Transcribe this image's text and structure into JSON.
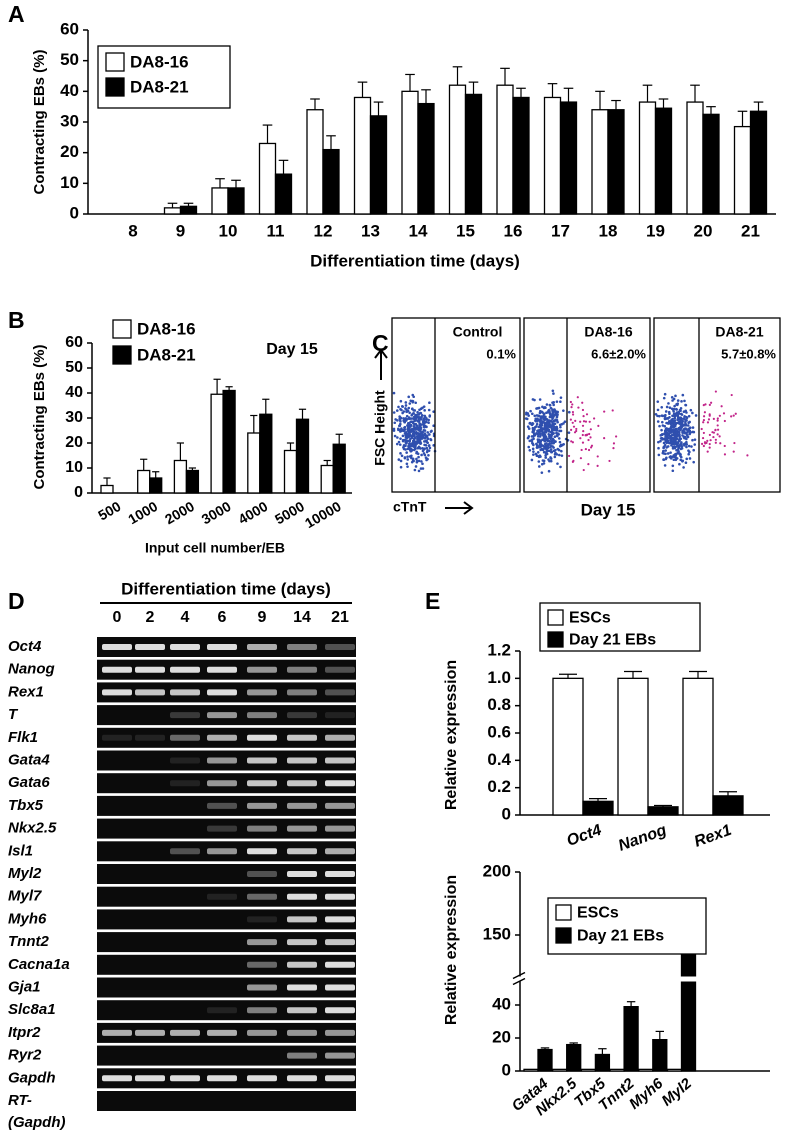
{
  "panel_labels": [
    "A",
    "B",
    "C",
    "D",
    "E"
  ],
  "chart_data": [
    {
      "type": "bar",
      "x_label": "Differentiation time (days)",
      "y_label": "Contracting EBs (%)",
      "categories": [
        "8",
        "9",
        "10",
        "11",
        "12",
        "13",
        "14",
        "15",
        "16",
        "17",
        "18",
        "19",
        "20",
        "21"
      ],
      "series": [
        {
          "name": "DA8-16",
          "color": "#ffffff",
          "values": [
            null,
            2,
            8.5,
            23,
            34,
            38,
            40,
            42,
            42,
            38,
            34,
            36.5,
            36.5,
            28.5
          ],
          "errors": [
            null,
            1.5,
            3,
            6,
            3.5,
            5,
            5.5,
            6,
            5.5,
            4.5,
            6,
            5.5,
            5.5,
            5
          ]
        },
        {
          "name": "DA8-21",
          "color": "#000000",
          "values": [
            null,
            2.5,
            8.5,
            13,
            21,
            32,
            36,
            39,
            38,
            36.5,
            34,
            34.5,
            32.5,
            33.5
          ],
          "errors": [
            null,
            1,
            2.5,
            4.5,
            4.5,
            4.5,
            4.5,
            4,
            3,
            4.5,
            3,
            3,
            2.5,
            3
          ]
        }
      ],
      "ylim": [
        0,
        60
      ],
      "yticks": [
        0,
        10,
        20,
        30,
        40,
        50,
        60
      ]
    },
    {
      "type": "bar",
      "annotation": "Day 15",
      "x_label": "Input cell number/EB",
      "y_label": "Contracting EBs (%)",
      "categories": [
        "500",
        "1000",
        "2000",
        "3000",
        "4000",
        "5000",
        "10000"
      ],
      "series": [
        {
          "name": "DA8-16",
          "color": "#ffffff",
          "values": [
            3,
            9,
            13,
            39.5,
            24,
            17,
            11
          ],
          "errors": [
            3,
            4.5,
            7,
            6,
            7,
            3,
            2
          ]
        },
        {
          "name": "DA8-21",
          "color": "#000000",
          "values": [
            null,
            6,
            9,
            41,
            31.5,
            29.5,
            19.5
          ],
          "errors": [
            null,
            2.5,
            1,
            1.5,
            6,
            4,
            4
          ]
        }
      ],
      "ylim": [
        0,
        60
      ],
      "yticks": [
        0,
        10,
        20,
        30,
        40,
        50,
        60
      ]
    },
    {
      "type": "bar",
      "y_label": "Relative expression",
      "categories": [
        "Oct4",
        "Nanog",
        "Rex1"
      ],
      "series": [
        {
          "name": "ESCs",
          "color": "#ffffff",
          "values": [
            1,
            1,
            1
          ],
          "errors": [
            0.03,
            0.05,
            0.05
          ]
        },
        {
          "name": "Day 21 EBs",
          "color": "#000000",
          "values": [
            0.1,
            0.06,
            0.14
          ],
          "errors": [
            0.02,
            0.01,
            0.03
          ]
        }
      ],
      "ylim": [
        0,
        1.2
      ],
      "yticks": [
        0,
        0.2,
        0.4,
        0.6,
        0.8,
        {
          "value": 1,
          "label": "1.0"
        },
        1.2
      ]
    },
    {
      "type": "bar",
      "y_label": "Relative expression",
      "categories": [
        "Gata4",
        "Nkx2.5",
        "Tbx5",
        "Tnnt2",
        "Myh6",
        "Myl2"
      ],
      "series": [
        {
          "name": "ESCs",
          "color": "#ffffff",
          "values": [
            1,
            1,
            1,
            1,
            1,
            1
          ]
        },
        {
          "name": "Day 21 EBs",
          "color": "#000000",
          "values": [
            13,
            16,
            10,
            39,
            19,
            138
          ],
          "errors": [
            1,
            1,
            3.5,
            3,
            5,
            37
          ]
        }
      ],
      "ylim": [
        0,
        200
      ],
      "ybreak": [
        50,
        125
      ],
      "yticks": [
        0,
        20,
        40,
        150,
        200
      ]
    }
  ],
  "flow": {
    "y_label": "FSC Height",
    "x_label": "cTnT",
    "caption": "Day 15",
    "plots": [
      {
        "name": "Control",
        "percent": "0.1%"
      },
      {
        "name": "DA8-16",
        "percent": "6.6±2.0%"
      },
      {
        "name": "DA8-21",
        "percent": "5.7±0.8%"
      }
    ]
  },
  "gel": {
    "title": "Differentiation time (days)",
    "lanes": [
      "0",
      "2",
      "4",
      "6",
      "9",
      "14",
      "21"
    ],
    "rows": [
      {
        "gene": "Oct4",
        "bands": [
          0.9,
          0.9,
          0.9,
          0.9,
          0.7,
          0.5,
          0.3
        ]
      },
      {
        "gene": "Nanog",
        "bands": [
          0.9,
          0.9,
          0.9,
          0.9,
          0.6,
          0.5,
          0.3
        ]
      },
      {
        "gene": "Rex1",
        "bands": [
          0.9,
          0.8,
          0.8,
          0.9,
          0.6,
          0.5,
          0.3
        ]
      },
      {
        "gene": "T",
        "bands": [
          0,
          0,
          0.2,
          0.6,
          0.5,
          0.2,
          0.1
        ]
      },
      {
        "gene": "Flk1",
        "bands": [
          0.1,
          0.1,
          0.4,
          0.7,
          0.9,
          0.8,
          0.7
        ]
      },
      {
        "gene": "Gata4",
        "bands": [
          0,
          0,
          0.1,
          0.6,
          0.8,
          0.8,
          0.8
        ]
      },
      {
        "gene": "Gata6",
        "bands": [
          0,
          0,
          0.1,
          0.6,
          0.8,
          0.8,
          0.9
        ]
      },
      {
        "gene": "Tbx5",
        "bands": [
          0,
          0,
          0,
          0.3,
          0.6,
          0.6,
          0.6
        ]
      },
      {
        "gene": "Nkx2.5",
        "bands": [
          0,
          0,
          0,
          0.2,
          0.5,
          0.6,
          0.6
        ]
      },
      {
        "gene": "Isl1",
        "bands": [
          0,
          0,
          0.3,
          0.6,
          0.9,
          0.8,
          0.7
        ]
      },
      {
        "gene": "Myl2",
        "bands": [
          0,
          0,
          0,
          0,
          0.3,
          0.9,
          0.9
        ]
      },
      {
        "gene": "Myl7",
        "bands": [
          0,
          0,
          0,
          0.1,
          0.4,
          0.9,
          0.9
        ]
      },
      {
        "gene": "Myh6",
        "bands": [
          0,
          0,
          0,
          0,
          0.1,
          0.8,
          0.9
        ]
      },
      {
        "gene": "Tnnt2",
        "bands": [
          0,
          0,
          0,
          0,
          0.6,
          0.8,
          0.8
        ]
      },
      {
        "gene": "Cacna1a",
        "bands": [
          0,
          0,
          0,
          0,
          0.4,
          0.8,
          0.9
        ]
      },
      {
        "gene": "Gja1",
        "bands": [
          0,
          0,
          0,
          0,
          0.6,
          0.9,
          0.9
        ]
      },
      {
        "gene": "Slc8a1",
        "bands": [
          0,
          0,
          0,
          0.1,
          0.5,
          0.8,
          0.9
        ]
      },
      {
        "gene": "Itpr2",
        "bands": [
          0.7,
          0.7,
          0.7,
          0.7,
          0.6,
          0.6,
          0.6
        ]
      },
      {
        "gene": "Ryr2",
        "bands": [
          0,
          0,
          0,
          0,
          0,
          0.5,
          0.6
        ]
      },
      {
        "gene": "Gapdh",
        "bands": [
          0.9,
          0.9,
          0.9,
          0.9,
          0.9,
          0.9,
          0.9
        ]
      },
      {
        "gene": "RT-",
        "note": "(Gapdh)",
        "bands": [
          0,
          0,
          0,
          0,
          0,
          0,
          0
        ]
      }
    ]
  }
}
